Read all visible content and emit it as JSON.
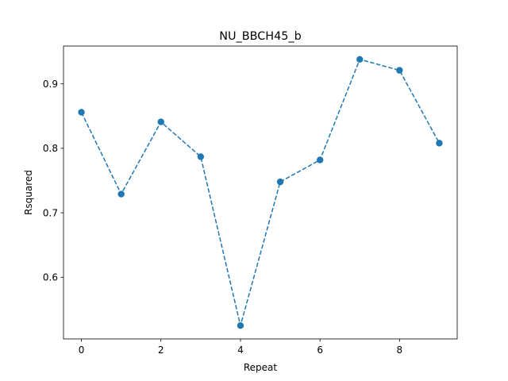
{
  "chart_data": {
    "type": "line",
    "title": "NU_BBCH45_b",
    "xlabel": "Repeat",
    "ylabel": "Rsquared",
    "x": [
      0,
      1,
      2,
      3,
      4,
      5,
      6,
      7,
      8,
      9
    ],
    "series": [
      {
        "values": [
          0.856,
          0.729,
          0.841,
          0.787,
          0.525,
          0.748,
          0.782,
          0.938,
          0.921,
          0.808
        ],
        "color": "#1f77b4",
        "line_style": "dashed",
        "marker": "circle"
      }
    ],
    "xlim": [
      -0.45,
      9.45
    ],
    "ylim": [
      0.5043,
      0.9587
    ],
    "xticks": [
      0,
      2,
      4,
      6,
      8
    ],
    "xtick_labels": [
      "0",
      "2",
      "4",
      "6",
      "8"
    ],
    "yticks": [
      0.6,
      0.7,
      0.8,
      0.9
    ],
    "ytick_labels": [
      "0.6",
      "0.7",
      "0.8",
      "0.9"
    ],
    "grid": false,
    "legend": false
  }
}
